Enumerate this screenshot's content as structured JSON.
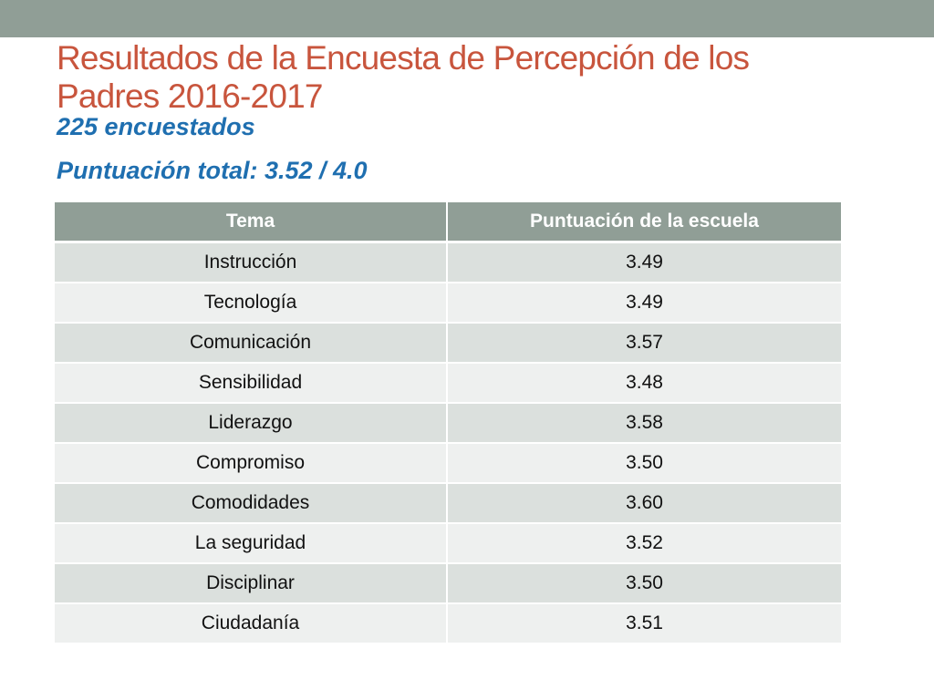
{
  "slide": {
    "title": "Resultados de la Encuesta de Percepción de los Padres 2016-2017",
    "respondents": "225 encuestados",
    "total_score": "Puntuación total: 3.52 / 4.0"
  },
  "table": {
    "headers": [
      "Tema",
      "Puntuación de la escuela"
    ],
    "rows": [
      {
        "topic": "Instrucción",
        "score": "3.49"
      },
      {
        "topic": "Tecnología",
        "score": "3.49"
      },
      {
        "topic": "Comunicación",
        "score": "3.57"
      },
      {
        "topic": "Sensibilidad",
        "score": "3.48"
      },
      {
        "topic": "Liderazgo",
        "score": "3.58"
      },
      {
        "topic": "Compromiso",
        "score": "3.50"
      },
      {
        "topic": "Comodidades",
        "score": "3.60"
      },
      {
        "topic": "La seguridad",
        "score": "3.52"
      },
      {
        "topic": "Disciplinar",
        "score": "3.50"
      },
      {
        "topic": "Ciudadanía",
        "score": "3.51"
      }
    ]
  },
  "colors": {
    "title": "#c8553d",
    "subtitle": "#1f6fb0",
    "header_band": "#909e96",
    "row_dark": "#dbe0dd",
    "row_light": "#eef0ef"
  }
}
